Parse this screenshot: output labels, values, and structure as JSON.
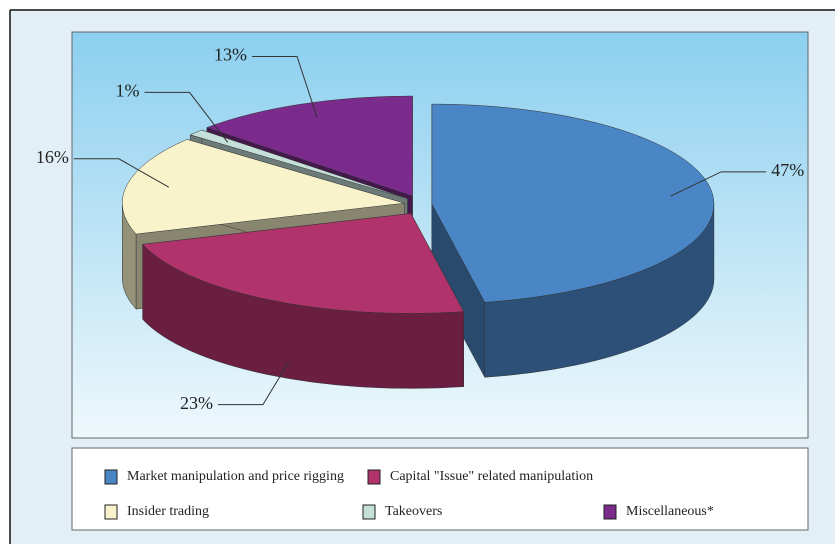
{
  "chart_data": {
    "type": "pie",
    "categories": [
      "Market manipulation and price rigging",
      "Capital \"Issue\" related manipulation",
      "Insider trading",
      "Takeovers",
      "Miscellaneous*"
    ],
    "values": [
      47,
      23,
      16,
      1,
      13
    ],
    "value_labels": [
      "47%",
      "23%",
      "16%",
      "1%",
      "13%"
    ],
    "colors": [
      "#4a86c6",
      "#b0336b",
      "#f9f3cb",
      "#c5dfd9",
      "#7b2b8c"
    ],
    "legend": "bottom"
  }
}
